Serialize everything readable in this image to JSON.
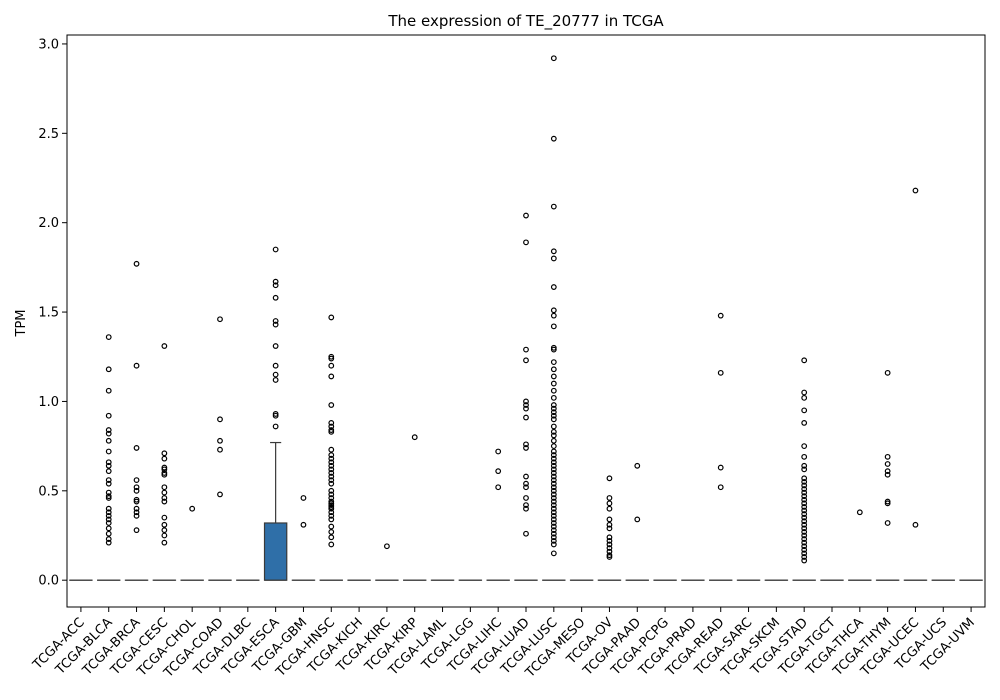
{
  "chart_data": {
    "type": "box",
    "title": "The expression of TE_20777 in TCGA",
    "xlabel": "",
    "ylabel": "TPM",
    "ylim": [
      -0.15,
      3.05
    ],
    "yticks": [
      0.0,
      0.5,
      1.0,
      1.5,
      2.0,
      2.5,
      3.0
    ],
    "ytick_labels": [
      "0.0",
      "0.5",
      "1.0",
      "1.5",
      "2.0",
      "2.5",
      "3.0"
    ],
    "grid": false,
    "box_color": "#2f6fa8",
    "categories": [
      "TCGA-ACC",
      "TCGA-BLCA",
      "TCGA-BRCA",
      "TCGA-CESC",
      "TCGA-CHOL",
      "TCGA-COAD",
      "TCGA-DLBC",
      "TCGA-ESCA",
      "TCGA-GBM",
      "TCGA-HNSC",
      "TCGA-KICH",
      "TCGA-KIRC",
      "TCGA-KIRP",
      "TCGA-LAML",
      "TCGA-LGG",
      "TCGA-LIHC",
      "TCGA-LUAD",
      "TCGA-LUSC",
      "TCGA-MESO",
      "TCGA-OV",
      "TCGA-PAAD",
      "TCGA-PCPG",
      "TCGA-PRAD",
      "TCGA-READ",
      "TCGA-SARC",
      "TCGA-SKCM",
      "TCGA-STAD",
      "TCGA-TGCT",
      "TCGA-THCA",
      "TCGA-THYM",
      "TCGA-UCEC",
      "TCGA-UCS",
      "TCGA-UVM"
    ],
    "boxes": [
      {
        "q1": 0,
        "median": 0,
        "q3": 0,
        "whisker_low": 0,
        "whisker_high": 0,
        "outliers": []
      },
      {
        "q1": 0,
        "median": 0,
        "q3": 0,
        "whisker_low": 0,
        "whisker_high": 0,
        "outliers": [
          1.36,
          1.18,
          1.06,
          0.92,
          0.84,
          0.82,
          0.78,
          0.72,
          0.66,
          0.64,
          0.61,
          0.56,
          0.54,
          0.49,
          0.47,
          0.46,
          0.4,
          0.38,
          0.36,
          0.34,
          0.32,
          0.29,
          0.26,
          0.23,
          0.21
        ]
      },
      {
        "q1": 0,
        "median": 0,
        "q3": 0,
        "whisker_low": 0,
        "whisker_high": 0,
        "outliers": [
          1.77,
          1.2,
          0.74,
          0.56,
          0.52,
          0.5,
          0.45,
          0.44,
          0.4,
          0.38,
          0.36,
          0.28
        ]
      },
      {
        "q1": 0,
        "median": 0,
        "q3": 0,
        "whisker_low": 0,
        "whisker_high": 0,
        "outliers": [
          1.31,
          0.71,
          0.68,
          0.63,
          0.62,
          0.6,
          0.59,
          0.52,
          0.49,
          0.46,
          0.44,
          0.35,
          0.31,
          0.28,
          0.25,
          0.21
        ]
      },
      {
        "q1": 0,
        "median": 0,
        "q3": 0,
        "whisker_low": 0,
        "whisker_high": 0,
        "outliers": [
          0.4
        ]
      },
      {
        "q1": 0,
        "median": 0,
        "q3": 0,
        "whisker_low": 0,
        "whisker_high": 0,
        "outliers": [
          1.46,
          0.9,
          0.78,
          0.73,
          0.48
        ]
      },
      {
        "q1": 0,
        "median": 0,
        "q3": 0,
        "whisker_low": 0,
        "whisker_high": 0,
        "outliers": []
      },
      {
        "q1": 0,
        "median": 0,
        "q3": 0.32,
        "whisker_low": 0,
        "whisker_high": 0.77,
        "outliers": [
          1.85,
          1.67,
          1.65,
          1.58,
          1.45,
          1.43,
          1.31,
          1.2,
          1.15,
          1.12,
          0.93,
          0.92,
          0.86
        ]
      },
      {
        "q1": 0,
        "median": 0,
        "q3": 0,
        "whisker_low": 0,
        "whisker_high": 0,
        "outliers": [
          0.46,
          0.31
        ]
      },
      {
        "q1": 0,
        "median": 0,
        "q3": 0,
        "whisker_low": 0,
        "whisker_high": 0,
        "outliers": [
          1.47,
          1.25,
          1.24,
          1.2,
          1.14,
          0.98,
          0.88,
          0.86,
          0.84,
          0.83,
          0.73,
          0.7,
          0.68,
          0.66,
          0.64,
          0.62,
          0.6,
          0.58,
          0.56,
          0.54,
          0.5,
          0.48,
          0.46,
          0.44,
          0.43,
          0.42,
          0.41,
          0.4,
          0.38,
          0.36,
          0.34,
          0.3,
          0.27,
          0.24,
          0.2
        ]
      },
      {
        "q1": 0,
        "median": 0,
        "q3": 0,
        "whisker_low": 0,
        "whisker_high": 0,
        "outliers": []
      },
      {
        "q1": 0,
        "median": 0,
        "q3": 0,
        "whisker_low": 0,
        "whisker_high": 0,
        "outliers": [
          0.19
        ]
      },
      {
        "q1": 0,
        "median": 0,
        "q3": 0,
        "whisker_low": 0,
        "whisker_high": 0,
        "outliers": [
          0.8
        ]
      },
      {
        "q1": 0,
        "median": 0,
        "q3": 0,
        "whisker_low": 0,
        "whisker_high": 0,
        "outliers": []
      },
      {
        "q1": 0,
        "median": 0,
        "q3": 0,
        "whisker_low": 0,
        "whisker_high": 0,
        "outliers": []
      },
      {
        "q1": 0,
        "median": 0,
        "q3": 0,
        "whisker_low": 0,
        "whisker_high": 0,
        "outliers": [
          0.72,
          0.61,
          0.52
        ]
      },
      {
        "q1": 0,
        "median": 0,
        "q3": 0,
        "whisker_low": 0,
        "whisker_high": 0,
        "outliers": [
          2.04,
          1.89,
          1.29,
          1.23,
          1.0,
          0.98,
          0.96,
          0.91,
          0.76,
          0.74,
          0.58,
          0.54,
          0.52,
          0.46,
          0.42,
          0.4,
          0.26
        ]
      },
      {
        "q1": 0,
        "median": 0,
        "q3": 0,
        "whisker_low": 0,
        "whisker_high": 0,
        "outliers": [
          2.92,
          2.47,
          2.09,
          1.84,
          1.8,
          1.64,
          1.51,
          1.48,
          1.42,
          1.3,
          1.29,
          1.22,
          1.18,
          1.14,
          1.1,
          1.06,
          1.02,
          0.98,
          0.96,
          0.94,
          0.92,
          0.9,
          0.86,
          0.83,
          0.81,
          0.78,
          0.75,
          0.72,
          0.7,
          0.68,
          0.66,
          0.64,
          0.62,
          0.6,
          0.58,
          0.56,
          0.54,
          0.52,
          0.5,
          0.48,
          0.46,
          0.44,
          0.42,
          0.4,
          0.38,
          0.36,
          0.34,
          0.32,
          0.3,
          0.28,
          0.26,
          0.24,
          0.22,
          0.2,
          0.15
        ]
      },
      {
        "q1": 0,
        "median": 0,
        "q3": 0,
        "whisker_low": 0,
        "whisker_high": 0,
        "outliers": []
      },
      {
        "q1": 0,
        "median": 0,
        "q3": 0,
        "whisker_low": 0,
        "whisker_high": 0,
        "outliers": [
          0.57,
          0.46,
          0.43,
          0.4,
          0.34,
          0.31,
          0.29,
          0.24,
          0.22,
          0.2,
          0.18,
          0.16,
          0.14,
          0.13
        ]
      },
      {
        "q1": 0,
        "median": 0,
        "q3": 0,
        "whisker_low": 0,
        "whisker_high": 0,
        "outliers": [
          0.64,
          0.34
        ]
      },
      {
        "q1": 0,
        "median": 0,
        "q3": 0,
        "whisker_low": 0,
        "whisker_high": 0,
        "outliers": []
      },
      {
        "q1": 0,
        "median": 0,
        "q3": 0,
        "whisker_low": 0,
        "whisker_high": 0,
        "outliers": []
      },
      {
        "q1": 0,
        "median": 0,
        "q3": 0,
        "whisker_low": 0,
        "whisker_high": 0,
        "outliers": [
          1.48,
          1.16,
          0.63,
          0.52
        ]
      },
      {
        "q1": 0,
        "median": 0,
        "q3": 0,
        "whisker_low": 0,
        "whisker_high": 0,
        "outliers": []
      },
      {
        "q1": 0,
        "median": 0,
        "q3": 0,
        "whisker_low": 0,
        "whisker_high": 0,
        "outliers": []
      },
      {
        "q1": 0,
        "median": 0,
        "q3": 0,
        "whisker_low": 0,
        "whisker_high": 0,
        "outliers": [
          1.23,
          1.05,
          1.02,
          0.95,
          0.88,
          0.75,
          0.69,
          0.64,
          0.62,
          0.57,
          0.55,
          0.53,
          0.51,
          0.49,
          0.47,
          0.45,
          0.43,
          0.41,
          0.39,
          0.37,
          0.35,
          0.33,
          0.31,
          0.29,
          0.27,
          0.25,
          0.23,
          0.21,
          0.19,
          0.17,
          0.15,
          0.13,
          0.11
        ]
      },
      {
        "q1": 0,
        "median": 0,
        "q3": 0,
        "whisker_low": 0,
        "whisker_high": 0,
        "outliers": []
      },
      {
        "q1": 0,
        "median": 0,
        "q3": 0,
        "whisker_low": 0,
        "whisker_high": 0,
        "outliers": [
          0.38
        ]
      },
      {
        "q1": 0,
        "median": 0,
        "q3": 0,
        "whisker_low": 0,
        "whisker_high": 0,
        "outliers": [
          1.16,
          0.69,
          0.65,
          0.61,
          0.59,
          0.44,
          0.43,
          0.32
        ]
      },
      {
        "q1": 0,
        "median": 0,
        "q3": 0,
        "whisker_low": 0,
        "whisker_high": 0,
        "outliers": [
          2.18,
          0.31
        ]
      },
      {
        "q1": 0,
        "median": 0,
        "q3": 0,
        "whisker_low": 0,
        "whisker_high": 0,
        "outliers": []
      },
      {
        "q1": 0,
        "median": 0,
        "q3": 0,
        "whisker_low": 0,
        "whisker_high": 0,
        "outliers": []
      }
    ]
  }
}
